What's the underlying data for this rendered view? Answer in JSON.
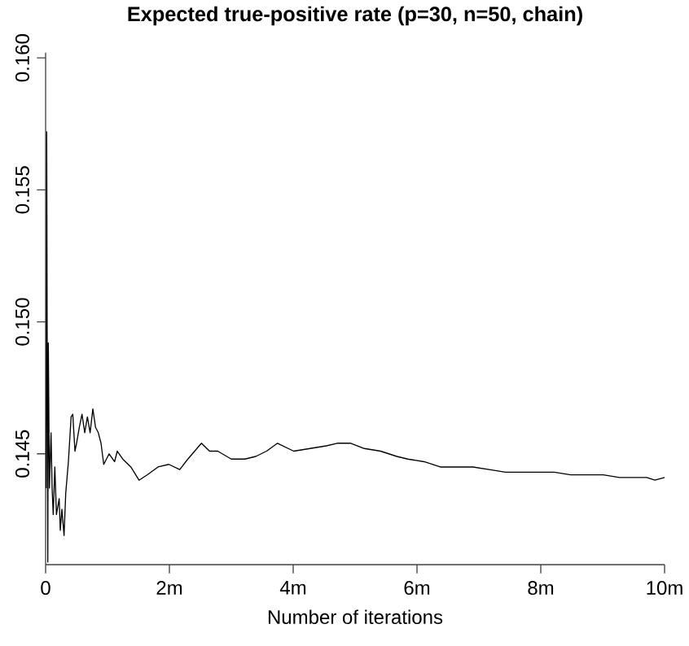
{
  "chart_data": {
    "type": "line",
    "title": "Expected true-positive rate (p=30, n=50, chain)",
    "xlabel": "Number of iterations",
    "xlim": [
      0,
      10000000
    ],
    "ylim": [
      0.1408,
      0.1602
    ],
    "xticks": [
      0,
      {
        "value": 2000000,
        "label": "2m"
      },
      {
        "value": 4000000,
        "label": "4m"
      },
      {
        "value": 6000000,
        "label": "6m"
      },
      {
        "value": 8000000,
        "label": "8m"
      },
      {
        "value": 10000000,
        "label": "10m"
      }
    ],
    "yticks": [
      0.145,
      {
        "value": 0.15,
        "label": "0.150"
      },
      0.155,
      {
        "value": 0.16,
        "label": "0.160"
      }
    ],
    "grid": false,
    "marker": "none",
    "line_style": "solid",
    "series": [
      {
        "color": "#000000",
        "x": [
          8800,
          17500,
          26300,
          35100,
          43900,
          61400,
          87700,
          105000,
          123000,
          149000,
          175000,
          219000,
          237000,
          263000,
          298000,
          325000,
          368000,
          412000,
          439000,
          474000,
          500000,
          544000,
          588000,
          632000,
          675000,
          719000,
          763000,
          807000,
          851000,
          895000,
          939000,
          1026000,
          1114000,
          1158000,
          1246000,
          1377000,
          1509000,
          1640000,
          1816000,
          1991000,
          2167000,
          2298000,
          2518000,
          2649000,
          2781000,
          3000000,
          3219000,
          3395000,
          3570000,
          3746000,
          4009000,
          4272000,
          4535000,
          4711000,
          4930000,
          5149000,
          5412000,
          5675000,
          5851000,
          6114000,
          6377000,
          6640000,
          6904000,
          7167000,
          7430000,
          7693000,
          7956000,
          8219000,
          8482000,
          8746000,
          9009000,
          9272000,
          9535000,
          9711000,
          9843000,
          10000000
        ],
        "values": [
          0.1437,
          0.1572,
          0.1478,
          0.1409,
          0.1492,
          0.1437,
          0.1458,
          0.1437,
          0.1427,
          0.1445,
          0.1427,
          0.1433,
          0.1421,
          0.1429,
          0.1419,
          0.1435,
          0.1447,
          0.1464,
          0.1465,
          0.1451,
          0.1454,
          0.146,
          0.1465,
          0.1458,
          0.1464,
          0.1458,
          0.1467,
          0.146,
          0.1458,
          0.1454,
          0.1446,
          0.145,
          0.1447,
          0.1451,
          0.1448,
          0.1445,
          0.144,
          0.1442,
          0.1445,
          0.1446,
          0.1444,
          0.1448,
          0.1454,
          0.1451,
          0.1451,
          0.1448,
          0.1448,
          0.1449,
          0.1451,
          0.1454,
          0.1451,
          0.1452,
          0.1453,
          0.1454,
          0.1454,
          0.1452,
          0.1451,
          0.1449,
          0.1448,
          0.1447,
          0.1445,
          0.1445,
          0.1445,
          0.1444,
          0.1443,
          0.1443,
          0.1443,
          0.1443,
          0.1442,
          0.1442,
          0.1442,
          0.1441,
          0.1441,
          0.1441,
          0.144,
          0.1441
        ]
      }
    ]
  }
}
